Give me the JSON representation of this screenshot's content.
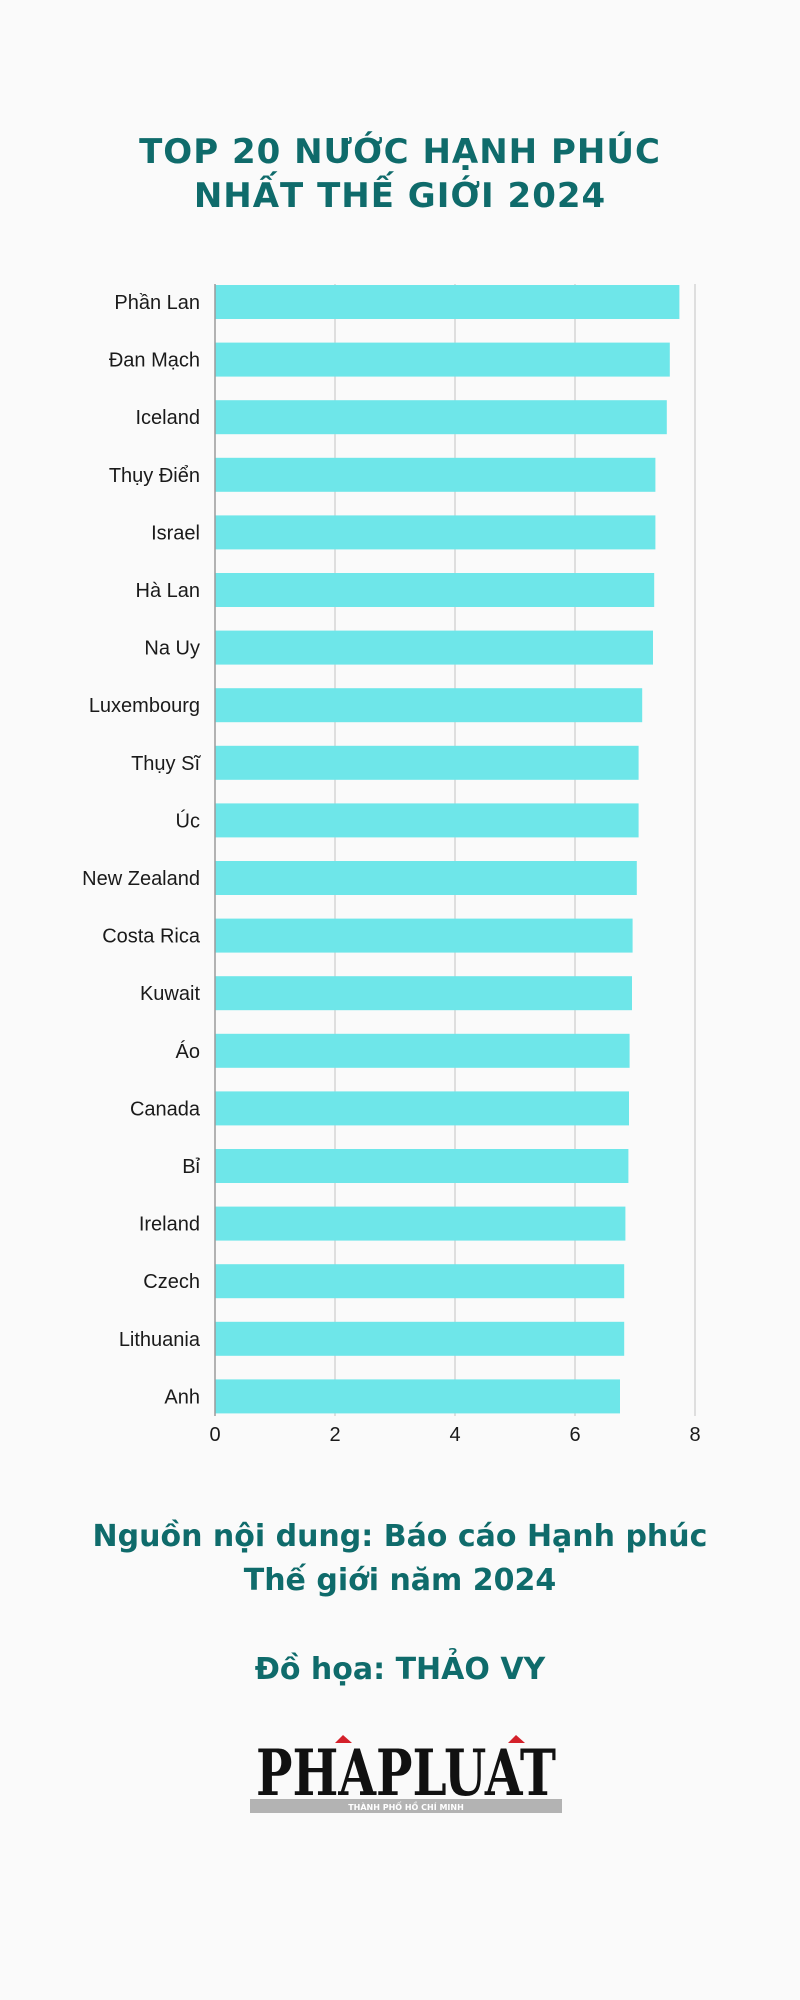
{
  "header": {
    "title_line1": "TOP 20 NƯỚC HẠNH PHÚC",
    "title_line2": "NHẤT THẾ GIỚI 2024"
  },
  "chart_data": {
    "type": "bar",
    "orientation": "horizontal",
    "categories": [
      "Phần Lan",
      "Đan Mạch",
      "Iceland",
      "Thụy Điển",
      "Israel",
      "Hà Lan",
      "Na Uy",
      "Luxembourg",
      "Thụy Sĩ",
      "Úc",
      "New Zealand",
      "Costa Rica",
      "Kuwait",
      "Áo",
      "Canada",
      "Bỉ",
      "Ireland",
      "Czech",
      "Lithuania",
      "Anh"
    ],
    "values": [
      7.74,
      7.58,
      7.53,
      7.34,
      7.34,
      7.32,
      7.3,
      7.12,
      7.06,
      7.06,
      7.03,
      6.96,
      6.95,
      6.91,
      6.9,
      6.89,
      6.84,
      6.82,
      6.82,
      6.75
    ],
    "xlim": [
      0,
      8
    ],
    "xticks": [
      "0",
      "2",
      "4",
      "6",
      "8"
    ],
    "grid": true,
    "bar_color": "#6ee6e9",
    "grid_color": "#d5d5d5"
  },
  "footer": {
    "source_line1": "Nguồn nội dung: Báo cáo Hạnh phúc",
    "source_line2": "Thế giới năm 2024",
    "credit": "Đồ họa: THẢO VY",
    "logo_text": "PHAPLUAT",
    "logo_subtext": "THÀNH PHỐ HỒ CHÍ MINH"
  },
  "colors": {
    "accent": "#0f6b6b",
    "logo_red": "#d4202a"
  }
}
